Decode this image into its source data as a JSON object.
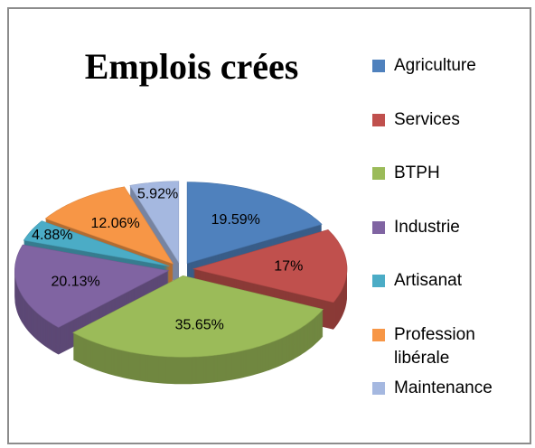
{
  "chart_data": {
    "type": "pie",
    "title": "Emplois crées",
    "categories": [
      "Agriculture",
      "Services",
      "BTPH",
      "Industrie",
      "Artisanat",
      "Profession libérale",
      "Maintenance"
    ],
    "values": [
      19.59,
      17,
      35.65,
      20.13,
      4.88,
      12.06,
      5.92
    ],
    "value_labels": [
      "19.59%",
      "17%",
      "35.65%",
      "20.13%",
      "4.88%",
      "12.06%",
      "5.92%"
    ],
    "colors": [
      "#4f81bd",
      "#c0504d",
      "#9bbb59",
      "#8064a2",
      "#4bacc6",
      "#f79646",
      "#a5b8e0"
    ],
    "legend": "right"
  }
}
